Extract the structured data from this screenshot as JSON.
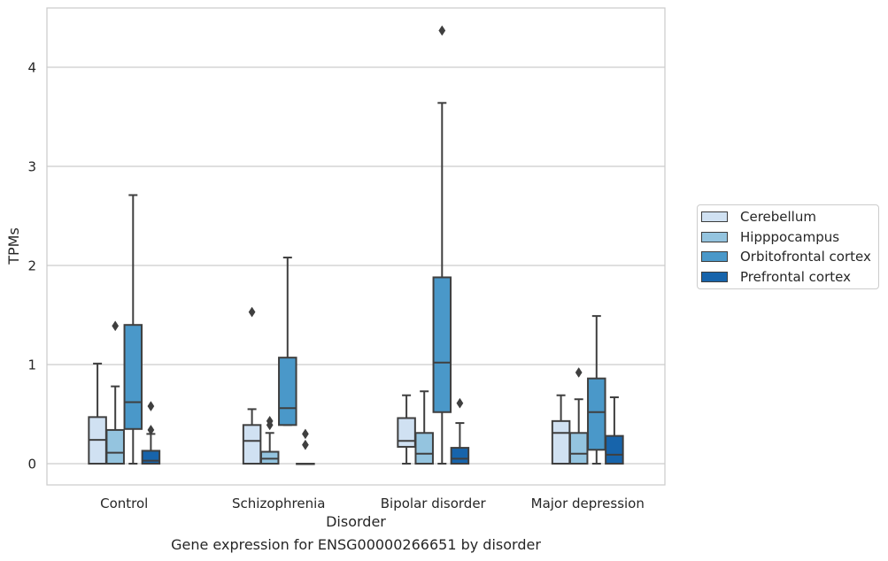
{
  "chart_data": {
    "type": "box",
    "title": "",
    "xlabel": "Disorder",
    "ylabel": "TPMs",
    "caption": "Gene expression for ENSG00000266651 by disorder",
    "categories": [
      "Control",
      "Schizophrenia",
      "Bipolar disorder",
      "Major depression"
    ],
    "yticks": [
      "0",
      "1",
      "2",
      "3",
      "4"
    ],
    "ylim": [
      -0.21,
      4.6
    ],
    "grid": "horizontal",
    "legend_position": "right",
    "series": [
      {
        "name": "Cerebellum",
        "color": "#d0e1f2",
        "boxes": [
          {
            "whisker_low": 0,
            "q1": 0,
            "median": 0.24,
            "q3": 0.47,
            "whisker_high": 1.01,
            "outliers": []
          },
          {
            "whisker_low": 0,
            "q1": 0,
            "median": 0.23,
            "q3": 0.39,
            "whisker_high": 0.55,
            "outliers": [
              1.53
            ]
          },
          {
            "whisker_low": 0,
            "q1": 0.17,
            "median": 0.23,
            "q3": 0.46,
            "whisker_high": 0.69,
            "outliers": []
          },
          {
            "whisker_low": 0,
            "q1": 0,
            "median": 0.31,
            "q3": 0.43,
            "whisker_high": 0.69,
            "outliers": []
          }
        ]
      },
      {
        "name": "Hipppocampus",
        "color": "#94c4df",
        "boxes": [
          {
            "whisker_low": 0,
            "q1": 0,
            "median": 0.11,
            "q3": 0.34,
            "whisker_high": 0.78,
            "outliers": [
              1.39
            ]
          },
          {
            "whisker_low": 0,
            "q1": 0,
            "median": 0.05,
            "q3": 0.12,
            "whisker_high": 0.31,
            "outliers": [
              0.43,
              0.39
            ]
          },
          {
            "whisker_low": 0,
            "q1": 0,
            "median": 0.1,
            "q3": 0.31,
            "whisker_high": 0.73,
            "outliers": []
          },
          {
            "whisker_low": 0,
            "q1": 0,
            "median": 0.1,
            "q3": 0.31,
            "whisker_high": 0.65,
            "outliers": [
              0.92
            ]
          }
        ]
      },
      {
        "name": "Orbitofrontal cortex",
        "color": "#4a98c9",
        "boxes": [
          {
            "whisker_low": 0,
            "q1": 0.35,
            "median": 0.62,
            "q3": 1.4,
            "whisker_high": 2.71,
            "outliers": []
          },
          {
            "whisker_low": 0.39,
            "q1": 0.39,
            "median": 0.56,
            "q3": 1.07,
            "whisker_high": 2.08,
            "outliers": []
          },
          {
            "whisker_low": 0,
            "q1": 0.52,
            "median": 1.02,
            "q3": 1.88,
            "whisker_high": 3.64,
            "outliers": [
              4.37
            ]
          },
          {
            "whisker_low": 0,
            "q1": 0.14,
            "median": 0.52,
            "q3": 0.86,
            "whisker_high": 1.49,
            "outliers": []
          }
        ]
      },
      {
        "name": "Prefrontal cortex",
        "color": "#1764ab",
        "boxes": [
          {
            "whisker_low": 0,
            "q1": 0,
            "median": 0.03,
            "q3": 0.13,
            "whisker_high": 0.3,
            "outliers": [
              0.58,
              0.34
            ]
          },
          {
            "whisker_low": 0,
            "q1": 0,
            "median": 0,
            "q3": 0,
            "whisker_high": 0,
            "outliers": [
              0.3,
              0.19
            ]
          },
          {
            "whisker_low": 0,
            "q1": 0,
            "median": 0.05,
            "q3": 0.16,
            "whisker_high": 0.41,
            "outliers": [
              0.61
            ]
          },
          {
            "whisker_low": 0,
            "q1": 0,
            "median": 0.09,
            "q3": 0.28,
            "whisker_high": 0.67,
            "outliers": []
          }
        ]
      }
    ]
  }
}
